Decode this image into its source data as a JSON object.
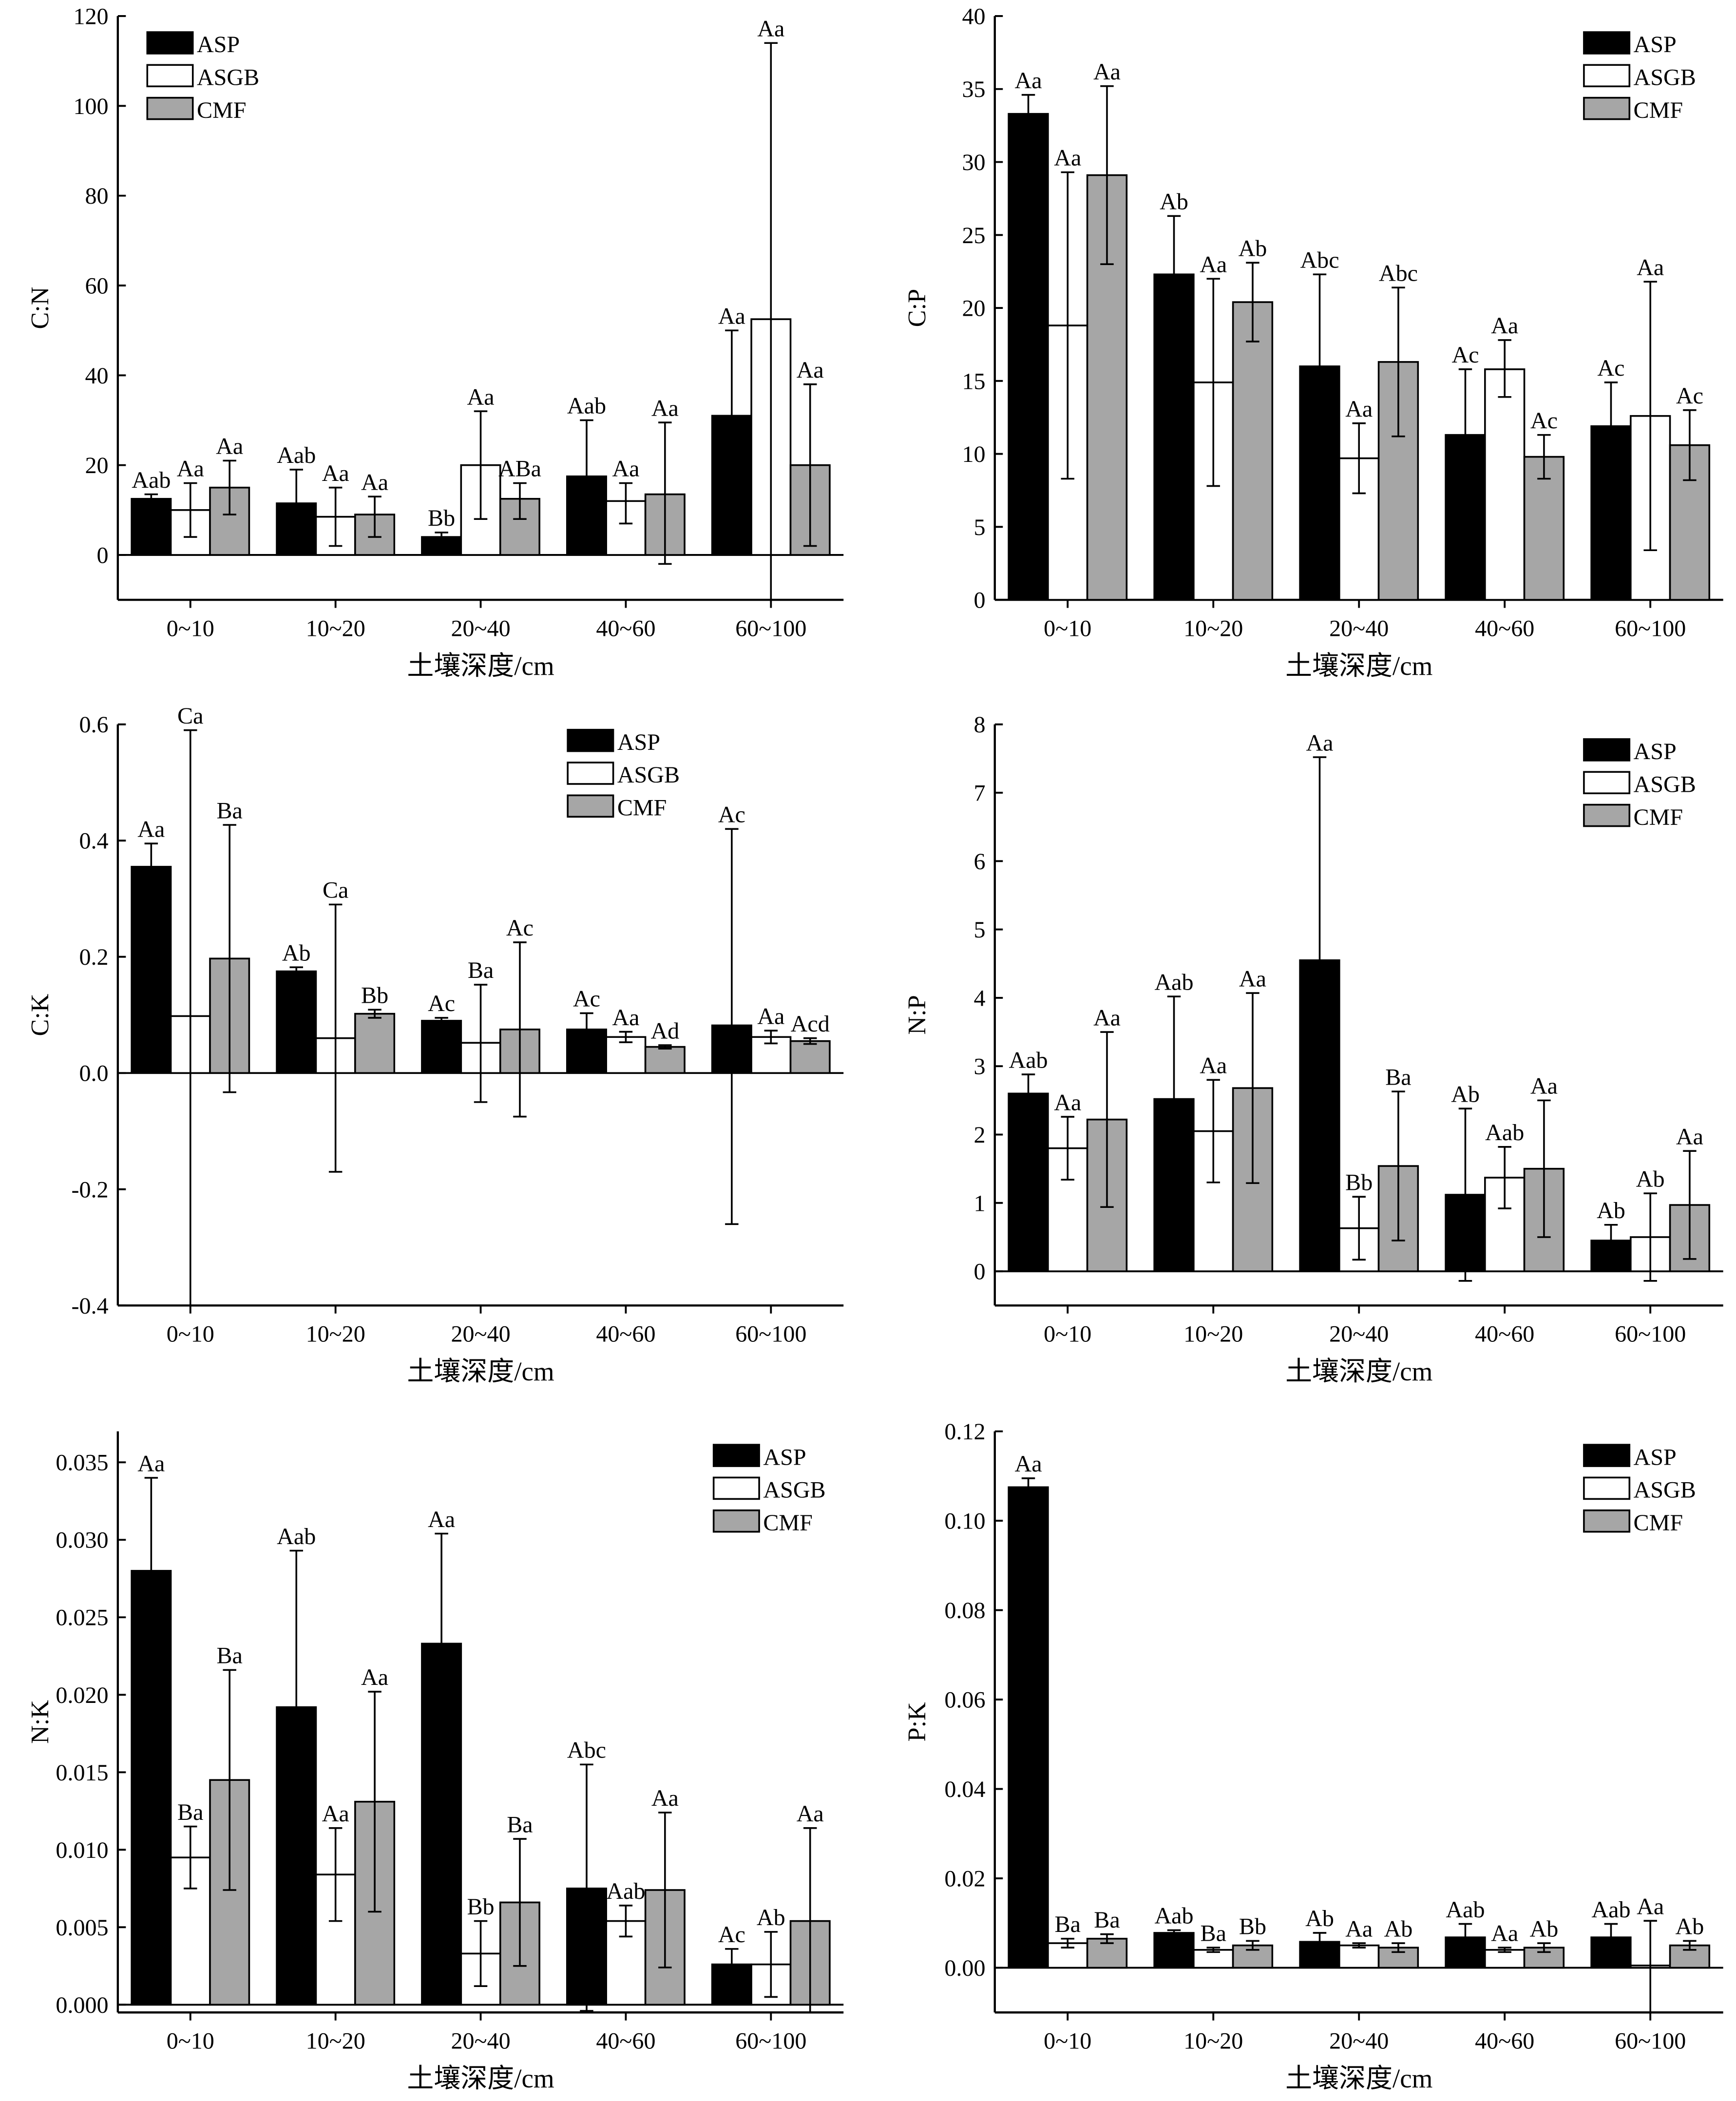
{
  "series_names": [
    "ASP",
    "ASGB",
    "CMF"
  ],
  "colors": {
    "ASP": "#000000",
    "ASGB": "#ffffff",
    "CMF": "#a6a6a6"
  },
  "chart_data": [
    {
      "type": "bar",
      "ylabel": "C:N",
      "xlabel": "土壤深度/cm",
      "categories": [
        "0~10",
        "10~20",
        "20~40",
        "40~60",
        "60~100"
      ],
      "ylim": [
        -10,
        120
      ],
      "yticks": [
        "0",
        "20",
        "40",
        "60",
        "80",
        "100",
        "120"
      ],
      "legend": "top-left",
      "series": [
        {
          "name": "ASP",
          "values": [
            12.5,
            11.5,
            4,
            17.5,
            31
          ],
          "err": [
            [
              11.5,
              13.5
            ],
            [
              4,
              19
            ],
            [
              3,
              5
            ],
            [
              5,
              30
            ],
            [
              12,
              50
            ]
          ],
          "labels": [
            "Aab",
            "Aab",
            "Bb",
            "Aab",
            "Aa"
          ]
        },
        {
          "name": "ASGB",
          "values": [
            10,
            8.5,
            20,
            12,
            52.5
          ],
          "err": [
            [
              4,
              16
            ],
            [
              2,
              15
            ],
            [
              8,
              32
            ],
            [
              7,
              16
            ],
            [
              -10,
              114
            ]
          ],
          "labels": [
            "Aa",
            "Aa",
            "Aa",
            "Aa",
            "Aa"
          ]
        },
        {
          "name": "CMF",
          "values": [
            15,
            9,
            12.5,
            13.5,
            20
          ],
          "err": [
            [
              9,
              21
            ],
            [
              4,
              13
            ],
            [
              8,
              16
            ],
            [
              -2,
              29.5
            ],
            [
              2,
              38
            ]
          ],
          "labels": [
            "Aa",
            "Aa",
            "ABa",
            "Aa",
            "Aa"
          ]
        }
      ]
    },
    {
      "type": "bar",
      "ylabel": "C:P",
      "xlabel": "土壤深度/cm",
      "categories": [
        "0~10",
        "10~20",
        "20~40",
        "40~60",
        "60~100"
      ],
      "ylim": [
        0,
        40
      ],
      "yticks": [
        "0",
        "5",
        "10",
        "15",
        "20",
        "25",
        "30",
        "35",
        "40"
      ],
      "legend": "top-right",
      "series": [
        {
          "name": "ASP",
          "values": [
            33.3,
            22.3,
            16,
            11.3,
            11.9
          ],
          "err": [
            [
              32.1,
              34.6
            ],
            [
              18.3,
              26.3
            ],
            [
              9.8,
              22.3
            ],
            [
              6.8,
              15.8
            ],
            [
              8.9,
              14.9
            ]
          ],
          "labels": [
            "Aa",
            "Ab",
            "Abc",
            "Ac",
            "Ac"
          ]
        },
        {
          "name": "ASGB",
          "values": [
            18.8,
            14.9,
            9.7,
            15.8,
            12.6
          ],
          "err": [
            [
              8.3,
              29.3
            ],
            [
              7.8,
              22
            ],
            [
              7.3,
              12.1
            ],
            [
              13.9,
              17.8
            ],
            [
              3.4,
              21.8
            ]
          ],
          "labels": [
            "Aa",
            "Aa",
            "Aa",
            "Aa",
            "Aa"
          ]
        },
        {
          "name": "CMF",
          "values": [
            29.1,
            20.4,
            16.3,
            9.8,
            10.6
          ],
          "err": [
            [
              23,
              35.2
            ],
            [
              17.7,
              23.1
            ],
            [
              11.2,
              21.4
            ],
            [
              8.3,
              11.3
            ],
            [
              8.2,
              13
            ]
          ],
          "labels": [
            "Aa",
            "Ab",
            "Abc",
            "Ac",
            "Ac"
          ]
        }
      ]
    },
    {
      "type": "bar",
      "ylabel": "C:K",
      "xlabel": "土壤深度/cm",
      "categories": [
        "0~10",
        "10~20",
        "20~40",
        "40~60",
        "60~100"
      ],
      "ylim": [
        -0.4,
        0.6
      ],
      "yticks": [
        "-0.4",
        "-0.2",
        "0.0",
        "0.2",
        "0.4",
        "0.6"
      ],
      "legend": "top-right",
      "series": [
        {
          "name": "ASP",
          "values": [
            0.355,
            0.175,
            0.09,
            0.075,
            0.082
          ],
          "err": [
            [
              0.315,
              0.395
            ],
            [
              0.168,
              0.182
            ],
            [
              0.085,
              0.095
            ],
            [
              0.047,
              0.103
            ],
            [
              -0.26,
              0.42
            ]
          ],
          "labels": [
            "Aa",
            "Ab",
            "Ac",
            "Ac",
            "Ac"
          ]
        },
        {
          "name": "ASGB",
          "values": [
            0.098,
            0.06,
            0.052,
            0.062,
            0.062
          ],
          "err": [
            [
              -0.4,
              0.59
            ],
            [
              -0.17,
              0.29
            ],
            [
              -0.05,
              0.152
            ],
            [
              0.053,
              0.071
            ],
            [
              0.051,
              0.073
            ]
          ],
          "labels": [
            "Ca",
            "Ca",
            "Ba",
            "Aa",
            "Aa"
          ]
        },
        {
          "name": "CMF",
          "values": [
            0.197,
            0.102,
            0.075,
            0.045,
            0.055
          ],
          "err": [
            [
              -0.033,
              0.427
            ],
            [
              0.095,
              0.109
            ],
            [
              -0.075,
              0.225
            ],
            [
              0.042,
              0.048
            ],
            [
              0.05,
              0.06
            ]
          ],
          "labels": [
            "Ba",
            "Bb",
            "Ac",
            "Ad",
            "Acd"
          ]
        }
      ]
    },
    {
      "type": "bar",
      "ylabel": "N:P",
      "xlabel": "土壤深度/cm",
      "categories": [
        "0~10",
        "10~20",
        "20~40",
        "40~60",
        "60~100"
      ],
      "ylim": [
        -0.5,
        8
      ],
      "yticks": [
        "0",
        "1",
        "2",
        "3",
        "4",
        "5",
        "6",
        "7",
        "8"
      ],
      "legend": "top-right",
      "series": [
        {
          "name": "ASP",
          "values": [
            2.6,
            2.52,
            4.55,
            1.12,
            0.45
          ],
          "err": [
            [
              2.35,
              2.88
            ],
            [
              1.02,
              4.02
            ],
            [
              1.57,
              7.52
            ],
            [
              -0.14,
              2.38
            ],
            [
              0.22,
              0.68
            ]
          ],
          "labels": [
            "Aab",
            "Aab",
            "Aa",
            "Ab",
            "Ab"
          ]
        },
        {
          "name": "ASGB",
          "values": [
            1.8,
            2.05,
            0.63,
            1.37,
            0.5
          ],
          "err": [
            [
              1.34,
              2.26
            ],
            [
              1.3,
              2.8
            ],
            [
              0.17,
              1.09
            ],
            [
              0.92,
              1.82
            ],
            [
              -0.14,
              1.14
            ]
          ],
          "labels": [
            "Aa",
            "Aa",
            "Bb",
            "Aab",
            "Ab"
          ]
        },
        {
          "name": "CMF",
          "values": [
            2.22,
            2.68,
            1.54,
            1.5,
            0.97
          ],
          "err": [
            [
              0.94,
              3.5
            ],
            [
              1.29,
              4.07
            ],
            [
              0.45,
              2.63
            ],
            [
              0.5,
              2.5
            ],
            [
              0.18,
              1.76
            ]
          ],
          "labels": [
            "Aa",
            "Aa",
            "Ba",
            "Aa",
            "Aa"
          ]
        }
      ]
    },
    {
      "type": "bar",
      "ylabel": "N:K",
      "xlabel": "土壤深度/cm",
      "categories": [
        "0~10",
        "10~20",
        "20~40",
        "40~60",
        "60~100"
      ],
      "ylim": [
        -0.0005,
        0.037
      ],
      "yticks": [
        "0.000",
        "0.005",
        "0.010",
        "0.015",
        "0.020",
        "0.025",
        "0.030",
        "0.035"
      ],
      "legend": "top-right",
      "series": [
        {
          "name": "ASP",
          "values": [
            0.028,
            0.0192,
            0.0233,
            0.0075,
            0.0026
          ],
          "err": [
            [
              0.022,
              0.034
            ],
            [
              0.0091,
              0.0293
            ],
            [
              0.0162,
              0.0304
            ],
            [
              -0.0004,
              0.0155
            ],
            [
              0.0016,
              0.0036
            ]
          ],
          "labels": [
            "Aa",
            "Aab",
            "Aa",
            "Abc",
            "Ac"
          ]
        },
        {
          "name": "ASGB",
          "values": [
            0.0095,
            0.0084,
            0.0033,
            0.0054,
            0.0026
          ],
          "err": [
            [
              0.0075,
              0.0115
            ],
            [
              0.0054,
              0.0114
            ],
            [
              0.0012,
              0.0054
            ],
            [
              0.0044,
              0.0064
            ],
            [
              0.0005,
              0.0047
            ]
          ],
          "labels": [
            "Ba",
            "Aa",
            "Bb",
            "Aab",
            "Ab"
          ]
        },
        {
          "name": "CMF",
          "values": [
            0.0145,
            0.0131,
            0.0066,
            0.0074,
            0.0054
          ],
          "err": [
            [
              0.0074,
              0.0216
            ],
            [
              0.006,
              0.0202
            ],
            [
              0.0025,
              0.0107
            ],
            [
              0.0024,
              0.0124
            ],
            [
              -0.0006,
              0.0114
            ]
          ],
          "labels": [
            "Ba",
            "Aa",
            "Ba",
            "Aa",
            "Aa"
          ]
        }
      ]
    },
    {
      "type": "bar",
      "ylabel": "P:K",
      "xlabel": "土壤深度/cm",
      "categories": [
        "0~10",
        "10~20",
        "20~40",
        "40~60",
        "60~100"
      ],
      "ylim": [
        -0.01,
        0.12
      ],
      "yticks": [
        "0.00",
        "0.02",
        "0.04",
        "0.06",
        "0.08",
        "0.10",
        "0.12"
      ],
      "legend": "top-right",
      "series": [
        {
          "name": "ASP",
          "values": [
            0.1075,
            0.0078,
            0.0058,
            0.0068,
            0.0068
          ],
          "err": [
            [
              0.1055,
              0.1095
            ],
            [
              0.0072,
              0.0084
            ],
            [
              0.0038,
              0.0078
            ],
            [
              0.0038,
              0.0098
            ],
            [
              0.0038,
              0.0098
            ]
          ],
          "labels": [
            "Aa",
            "Aab",
            "Ab",
            "Aab",
            "Aab"
          ]
        },
        {
          "name": "ASGB",
          "values": [
            0.0055,
            0.004,
            0.005,
            0.004,
            0.0005
          ],
          "err": [
            [
              0.0045,
              0.0065
            ],
            [
              0.0035,
              0.0045
            ],
            [
              0.0045,
              0.0055
            ],
            [
              0.0035,
              0.0045
            ],
            [
              -0.01,
              0.0105
            ]
          ],
          "labels": [
            "Ba",
            "Ba",
            "Aa",
            "Aa",
            "Aa"
          ]
        },
        {
          "name": "CMF",
          "values": [
            0.0065,
            0.005,
            0.0045,
            0.0045,
            0.005
          ],
          "err": [
            [
              0.0055,
              0.0075
            ],
            [
              0.004,
              0.006
            ],
            [
              0.0035,
              0.0055
            ],
            [
              0.0035,
              0.0055
            ],
            [
              0.004,
              0.006
            ]
          ],
          "labels": [
            "Ba",
            "Bb",
            "Ab",
            "Ab",
            "Ab"
          ]
        }
      ]
    }
  ]
}
